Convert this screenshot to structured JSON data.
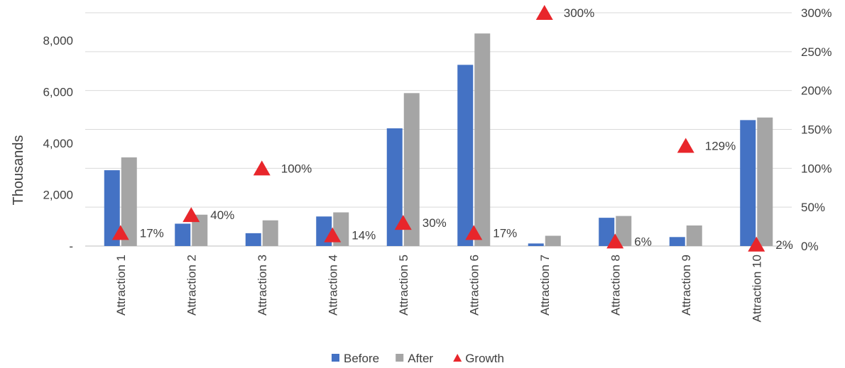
{
  "chart_data": {
    "type": "bar",
    "categories": [
      "Attraction 1",
      "Attraction 2",
      "Attraction 3",
      "Attraction 4",
      "Attraction 5",
      "Attraction 6",
      "Attraction 7",
      "Attraction 8",
      "Attraction 9",
      "Attraction 10"
    ],
    "series": [
      {
        "name": "Before",
        "type": "bar",
        "axis": "left",
        "color": "#4472C4",
        "values": [
          2950,
          870,
          500,
          1150,
          4580,
          7050,
          100,
          1100,
          350,
          4900
        ]
      },
      {
        "name": "After",
        "type": "bar",
        "axis": "left",
        "color": "#A5A5A5",
        "values": [
          3450,
          1220,
          1000,
          1310,
          5950,
          8270,
          400,
          1170,
          800,
          5000
        ]
      },
      {
        "name": "Growth",
        "type": "scatter",
        "axis": "right",
        "color": "#E8262B",
        "marker": "triangle",
        "values": [
          17,
          40,
          100,
          14,
          30,
          17,
          300,
          6,
          129,
          2
        ],
        "labels": [
          "17%",
          "40%",
          "100%",
          "14%",
          "30%",
          "17%",
          "300%",
          "6%",
          "129%",
          "2%"
        ]
      }
    ],
    "ylabel": "Thousands",
    "ylim": [
      0,
      8000
    ],
    "yticks": [
      0,
      2000,
      4000,
      6000,
      8000
    ],
    "ytick_labels": [
      "-",
      "2,000",
      "4,000",
      "6,000",
      "8,000"
    ],
    "y2lim": [
      0,
      300
    ],
    "y2ticks": [
      0,
      50,
      100,
      150,
      200,
      250,
      300
    ],
    "y2tick_labels": [
      "0%",
      "50%",
      "100%",
      "150%",
      "200%",
      "250%",
      "300%"
    ],
    "grid": true,
    "legend": {
      "position": "bottom",
      "entries": [
        "Before",
        "After",
        "Growth"
      ]
    }
  }
}
